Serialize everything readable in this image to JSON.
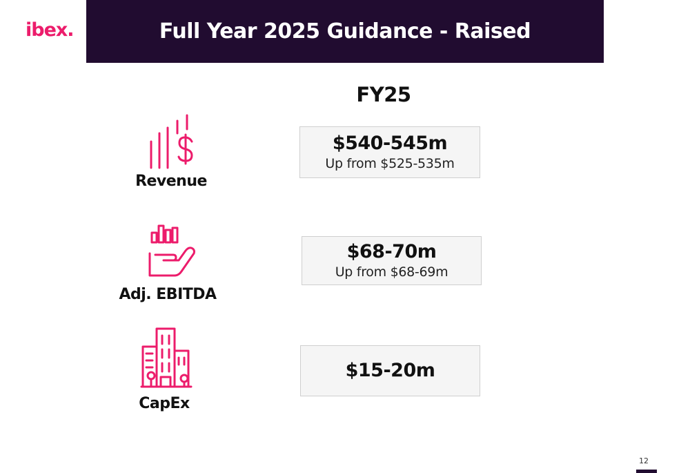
{
  "brand": {
    "logo": "ibex.",
    "accent": "#ec1c6b",
    "dark": "#210c30"
  },
  "header": {
    "title": "Full Year 2025 Guidance - Raised"
  },
  "column_header": "FY25",
  "metrics": [
    {
      "label": "Revenue",
      "icon": "revenue-chart-dollar-icon",
      "value": "$540-545m",
      "note": "Up from $525-535m"
    },
    {
      "label": "Adj. EBITDA",
      "icon": "hand-chart-icon",
      "value": "$68-70m",
      "note": "Up from $68-69m"
    },
    {
      "label": "CapEx",
      "icon": "buildings-icon",
      "value": "$15-20m"
    }
  ],
  "footer": {
    "page_number": "12"
  }
}
